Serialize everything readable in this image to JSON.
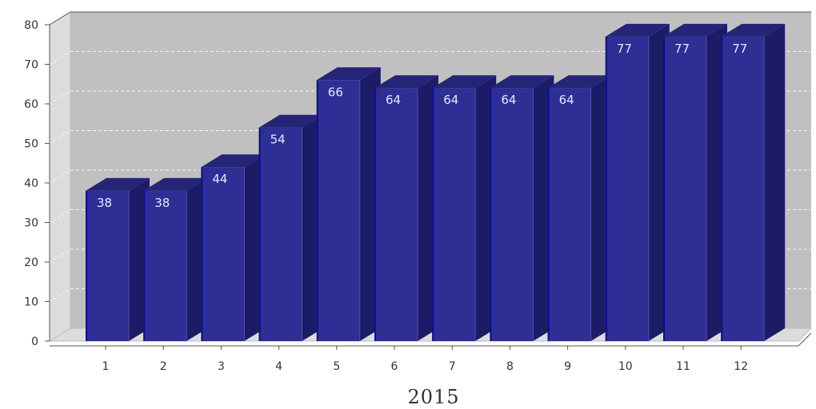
{
  "chart_data": {
    "type": "bar",
    "xlabel": "2015",
    "ylabel": "",
    "categories": [
      "1",
      "2",
      "3",
      "4",
      "5",
      "6",
      "7",
      "8",
      "9",
      "10",
      "11",
      "12"
    ],
    "values": [
      38,
      38,
      44,
      54,
      66,
      64,
      64,
      64,
      64,
      77,
      77,
      77
    ],
    "ylim": [
      0,
      80
    ],
    "yticks": [
      "0",
      "10",
      "20",
      "30",
      "40",
      "50",
      "60",
      "70",
      "80"
    ],
    "grid": true,
    "data_labels": true,
    "style": "3d",
    "colors": {
      "bar_front": "#2e2e94",
      "bar_top": "#252578",
      "bar_side": "#1c1c66",
      "bar_edge": "#0c0c9c",
      "plot_back": "#c0c0c0",
      "plot_side": "#dcdcdc",
      "plot_floor": "#dcdcdc",
      "gridline": "#ffffff",
      "label": "#e8e8ff"
    }
  }
}
